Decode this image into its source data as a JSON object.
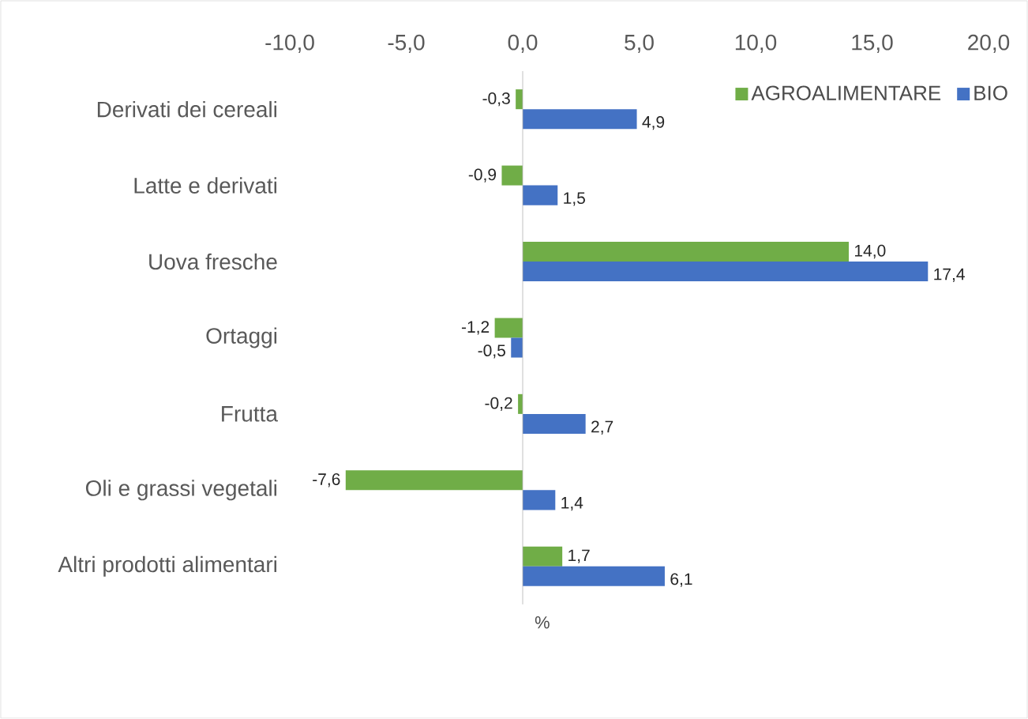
{
  "chart_data": {
    "type": "bar",
    "orientation": "horizontal",
    "xlabel": "%",
    "categories": [
      "Derivati dei cereali",
      "Latte e derivati",
      "Uova fresche",
      "Ortaggi",
      "Frutta",
      "Oli e grassi vegetali",
      "Altri prodotti alimentari"
    ],
    "series": [
      {
        "name": "AGROALIMENTARE",
        "color": "#70ad47",
        "values": [
          -0.3,
          -0.9,
          14.0,
          -1.2,
          -0.2,
          -7.6,
          1.7
        ],
        "value_labels": [
          "-0,3",
          "-0,9",
          "14,0",
          "-1,2",
          "-0,2",
          "-7,6",
          "1,7"
        ]
      },
      {
        "name": "BIO",
        "color": "#4472c4",
        "values": [
          4.9,
          1.5,
          17.4,
          -0.5,
          2.7,
          1.4,
          6.1
        ],
        "value_labels": [
          "4,9",
          "1,5",
          "17,4",
          "-0,5",
          "2,7",
          "1,4",
          "6,1"
        ]
      }
    ],
    "xlim": [
      -10,
      20
    ],
    "xticks": [
      {
        "value": -10,
        "label": "-10,0"
      },
      {
        "value": -5,
        "label": "-5,0"
      },
      {
        "value": 0,
        "label": "0,0"
      },
      {
        "value": 5,
        "label": "5,0"
      },
      {
        "value": 10,
        "label": "10,0"
      },
      {
        "value": 15,
        "label": "15,0"
      },
      {
        "value": 20,
        "label": "20,0"
      }
    ],
    "legend": "top right"
  }
}
